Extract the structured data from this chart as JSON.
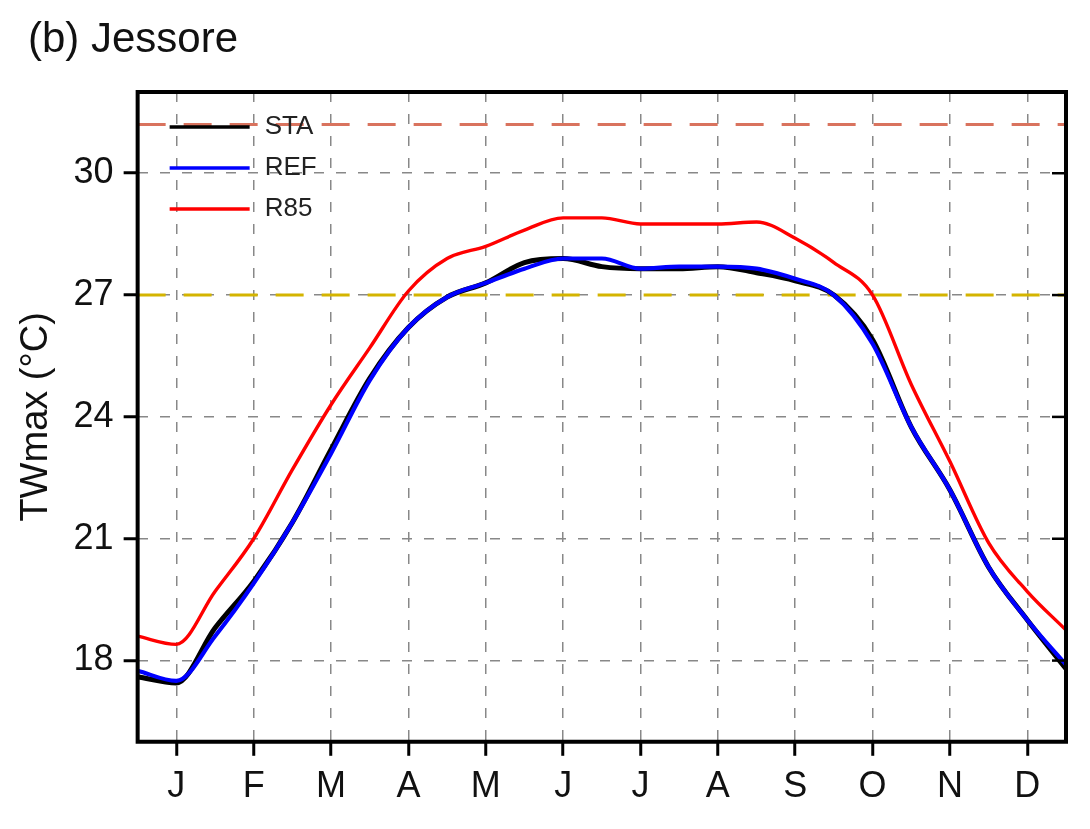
{
  "chart_data": {
    "type": "line",
    "title": "(b) Jessore",
    "ylabel": "TWmax (°C)",
    "categories": [
      null,
      "J",
      null,
      "F",
      null,
      "M",
      null,
      "A",
      null,
      "M",
      null,
      "J",
      null,
      "J",
      null,
      "A",
      null,
      "S",
      null,
      "O",
      null,
      "N",
      null,
      "D",
      null
    ],
    "ylim": [
      16,
      32
    ],
    "yticks": [
      18,
      21,
      24,
      27,
      30
    ],
    "grid": true,
    "legend": "top left",
    "line_style": "solid",
    "marker": "none",
    "ref_lines": [
      {
        "axis": "y",
        "value": 31.2,
        "color": "#d9735e",
        "line_style": "dashed"
      },
      {
        "axis": "y",
        "value": 27,
        "color": "#d4b400",
        "line_style": "dashed"
      }
    ],
    "series": [
      {
        "name": "STA",
        "color": "#000000",
        "values": [
          17.6,
          17.45,
          18.8,
          19.95,
          21.4,
          23.2,
          24.95,
          26.2,
          26.95,
          27.3,
          27.8,
          27.9,
          27.7,
          27.65,
          27.65,
          27.7,
          27.55,
          27.35,
          27.0,
          25.9,
          23.75,
          22.2,
          20.3,
          19.0,
          17.8
        ]
      },
      {
        "name": "REF",
        "color": "#0000ff",
        "values": [
          17.75,
          17.5,
          18.6,
          19.9,
          21.4,
          23.1,
          24.9,
          26.2,
          26.95,
          27.3,
          27.65,
          27.9,
          27.9,
          27.65,
          27.7,
          27.7,
          27.65,
          27.4,
          27.0,
          25.8,
          23.75,
          22.2,
          20.3,
          19.0,
          17.9
        ]
      },
      {
        "name": "R85",
        "color": "#ff0000",
        "values": [
          18.6,
          18.4,
          19.7,
          21.0,
          22.7,
          24.3,
          25.7,
          27.1,
          27.9,
          28.2,
          28.6,
          28.9,
          28.9,
          28.75,
          28.75,
          28.75,
          28.8,
          28.4,
          27.8,
          27.0,
          24.8,
          22.9,
          20.9,
          19.7,
          18.75
        ]
      }
    ]
  }
}
